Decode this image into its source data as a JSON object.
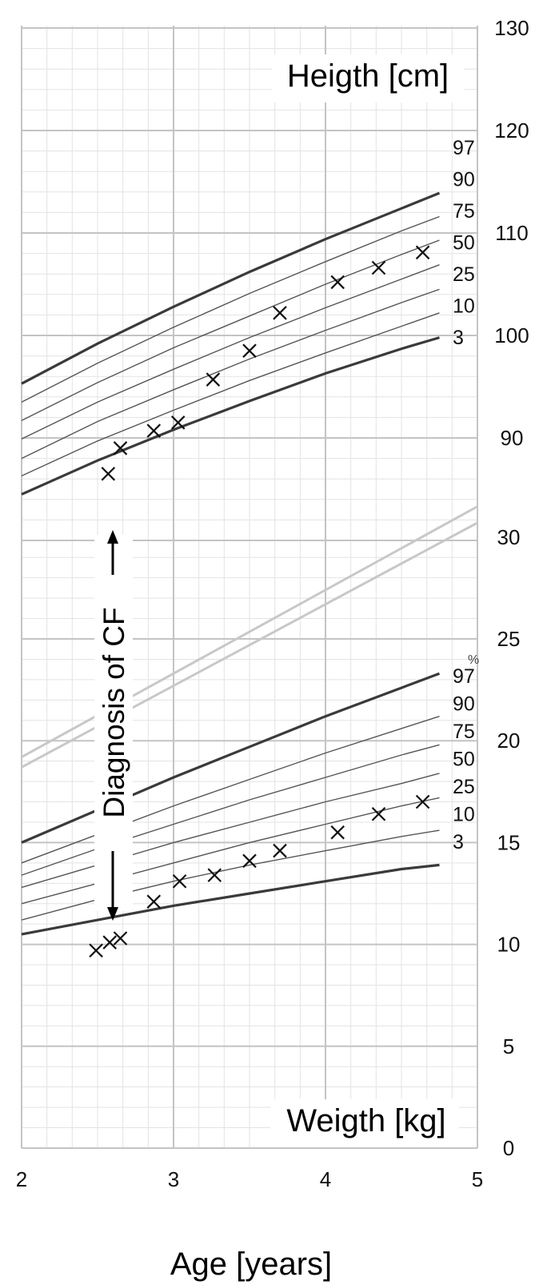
{
  "chart_data": {
    "type": "line",
    "x_axis": {
      "label": "Age [years]",
      "range": [
        2,
        5
      ],
      "ticks": [
        "2",
        "3",
        "4",
        "5"
      ]
    },
    "height_panel": {
      "title": "Heigth [cm]",
      "range": [
        80,
        130
      ],
      "ticks": [
        "90",
        "100",
        "110",
        "120",
        "130"
      ],
      "x": [
        2,
        2.5,
        3,
        3.5,
        4,
        4.5,
        4.75
      ],
      "percentiles": [
        {
          "name": "97",
          "values": [
            95.3,
            99.2,
            102.8,
            106.2,
            109.4,
            112.4,
            113.9
          ]
        },
        {
          "name": "90",
          "values": [
            93.5,
            97.3,
            100.8,
            104.1,
            107.2,
            110.2,
            111.6
          ]
        },
        {
          "name": "75",
          "values": [
            91.7,
            95.4,
            98.8,
            101.9,
            105.0,
            107.9,
            109.3
          ]
        },
        {
          "name": "50",
          "values": [
            89.9,
            93.5,
            96.7,
            99.8,
            102.7,
            105.5,
            106.9
          ]
        },
        {
          "name": "25",
          "values": [
            88.0,
            91.6,
            94.7,
            97.7,
            100.5,
            103.2,
            104.5
          ]
        },
        {
          "name": "10",
          "values": [
            86.3,
            89.7,
            92.7,
            95.6,
            98.3,
            100.9,
            102.2
          ]
        },
        {
          "name": "3",
          "values": [
            84.5,
            87.8,
            90.8,
            93.6,
            96.3,
            98.7,
            99.8
          ]
        }
      ],
      "measurements": {
        "x": [
          2.57,
          2.65,
          2.87,
          3.03,
          3.26,
          3.5,
          3.7,
          4.08,
          4.35,
          4.64
        ],
        "y": [
          86.5,
          89.0,
          90.7,
          91.5,
          95.7,
          98.5,
          102.2,
          105.2,
          106.6,
          108.1
        ]
      }
    },
    "weight_panel": {
      "title": "Weigth [kg]",
      "range": [
        0,
        35
      ],
      "ticks": [
        "0",
        "5",
        "10",
        "15",
        "20",
        "25",
        "30"
      ],
      "unit_mark": "%",
      "x": [
        2,
        2.5,
        3,
        3.5,
        4,
        4.5,
        4.75
      ],
      "percentiles": [
        {
          "name": "97",
          "values": [
            15.0,
            16.6,
            18.2,
            19.7,
            21.2,
            22.6,
            23.3
          ]
        },
        {
          "name": "90",
          "values": [
            14.0,
            15.4,
            16.8,
            18.1,
            19.4,
            20.6,
            21.2
          ]
        },
        {
          "name": "75",
          "values": [
            13.4,
            14.7,
            15.9,
            17.1,
            18.2,
            19.3,
            19.8
          ]
        },
        {
          "name": "50",
          "values": [
            12.8,
            13.9,
            15.0,
            16.0,
            17.0,
            17.9,
            18.4
          ]
        },
        {
          "name": "25",
          "values": [
            12.0,
            13.0,
            14.0,
            15.0,
            15.9,
            16.8,
            17.2
          ]
        },
        {
          "name": "10",
          "values": [
            11.2,
            12.2,
            13.1,
            13.9,
            14.6,
            15.3,
            15.6
          ]
        },
        {
          "name": "3",
          "values": [
            10.5,
            11.2,
            11.9,
            12.5,
            13.1,
            13.7,
            13.9
          ]
        }
      ],
      "measurements": {
        "x": [
          2.49,
          2.58,
          2.65,
          2.87,
          3.04,
          3.27,
          3.5,
          3.7,
          4.08,
          4.35,
          4.64
        ],
        "y": [
          9.7,
          10.1,
          10.3,
          12.1,
          13.1,
          13.4,
          14.1,
          14.6,
          15.5,
          16.4,
          17.0
        ]
      },
      "reference_band_upper": {
        "x": [
          2,
          5
        ],
        "values": [
          19.2,
          31.5
        ]
      },
      "reference_band_lower": {
        "x": [
          2,
          5
        ],
        "values": [
          18.7,
          30.7
        ]
      }
    },
    "annotation": "Diagnosis of CF",
    "grid": true,
    "legend": "right of curves"
  }
}
